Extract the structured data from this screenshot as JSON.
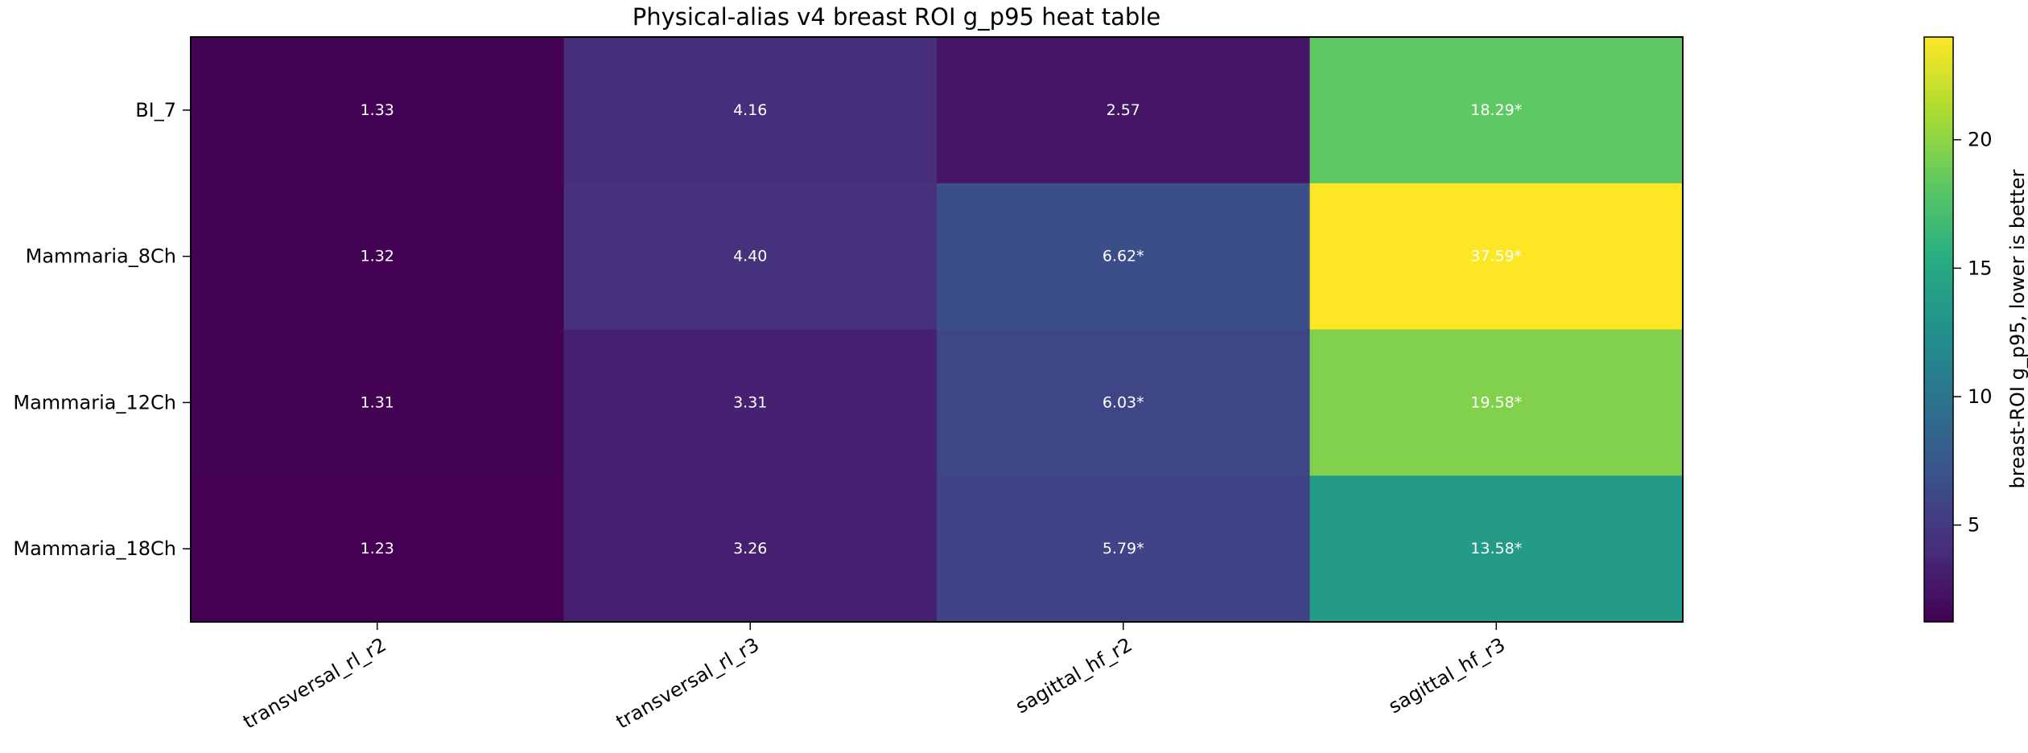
{
  "chart_data": {
    "type": "heatmap",
    "title": "Physical-alias v4 breast ROI g_p95 heat table",
    "rows": [
      "BI_7",
      "Mammaria_8Ch",
      "Mammaria_12Ch",
      "Mammaria_18Ch"
    ],
    "columns": [
      "transversal_rl_r2",
      "transversal_rl_r3",
      "sagittal_hf_r2",
      "sagittal_hf_r3"
    ],
    "values": [
      [
        1.33,
        4.16,
        2.57,
        18.29
      ],
      [
        1.32,
        4.4,
        6.62,
        37.59
      ],
      [
        1.31,
        3.31,
        6.03,
        19.58
      ],
      [
        1.23,
        3.26,
        5.79,
        13.58
      ]
    ],
    "cell_labels": [
      [
        "1.33",
        "4.16",
        "2.57",
        "18.29*"
      ],
      [
        "1.32",
        "4.40",
        "6.62*",
        "37.59*"
      ],
      [
        "1.31",
        "3.31",
        "6.03*",
        "19.58*"
      ],
      [
        "1.23",
        "3.26",
        "5.79*",
        "13.58*"
      ]
    ],
    "colormap": "viridis",
    "color_range": [
      1.23,
      24.0
    ],
    "colorbar": {
      "label": "breast-ROI g_p95, lower is better",
      "ticks": [
        5,
        10,
        15,
        20
      ],
      "tick_labels": [
        "5",
        "10",
        "15",
        "20"
      ]
    }
  }
}
